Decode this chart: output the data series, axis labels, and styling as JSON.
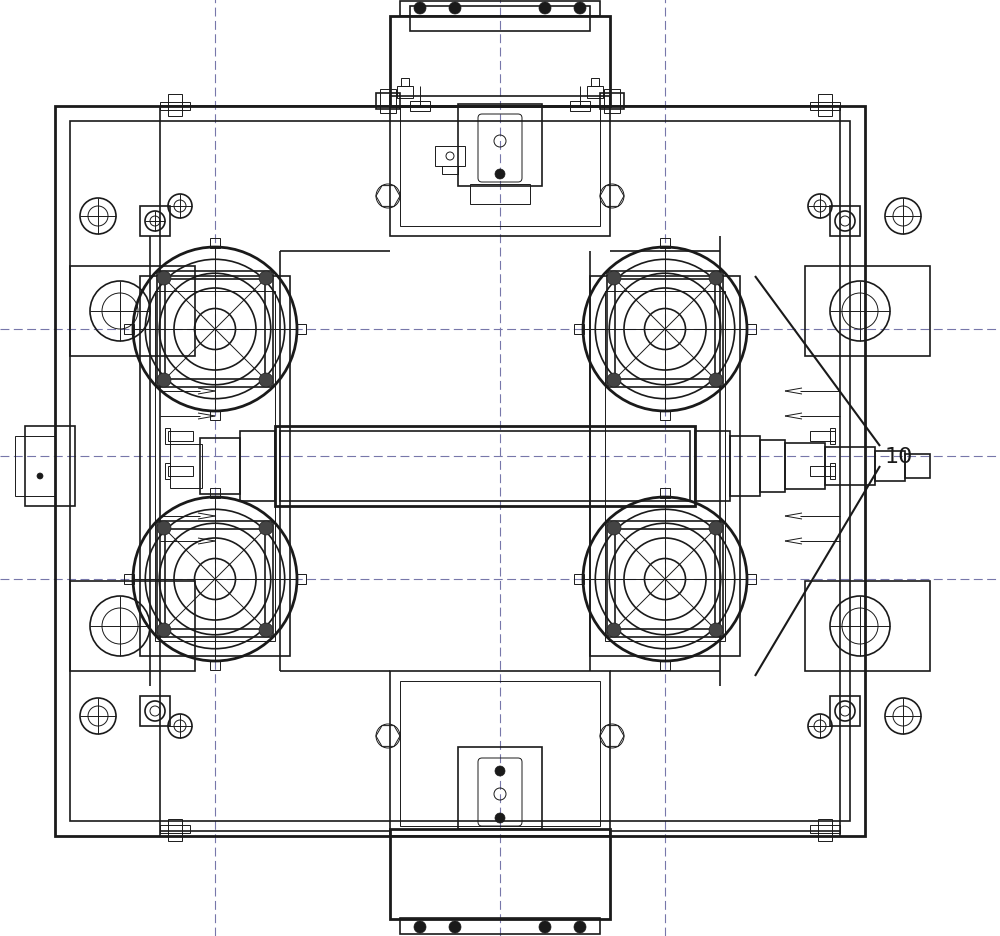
{
  "bg_color": "#ffffff",
  "line_color": "#1a1a1a",
  "dashed_color": "#7777aa",
  "label_text": "10",
  "label_fontsize": 16,
  "fig_width": 10.0,
  "fig_height": 9.37
}
